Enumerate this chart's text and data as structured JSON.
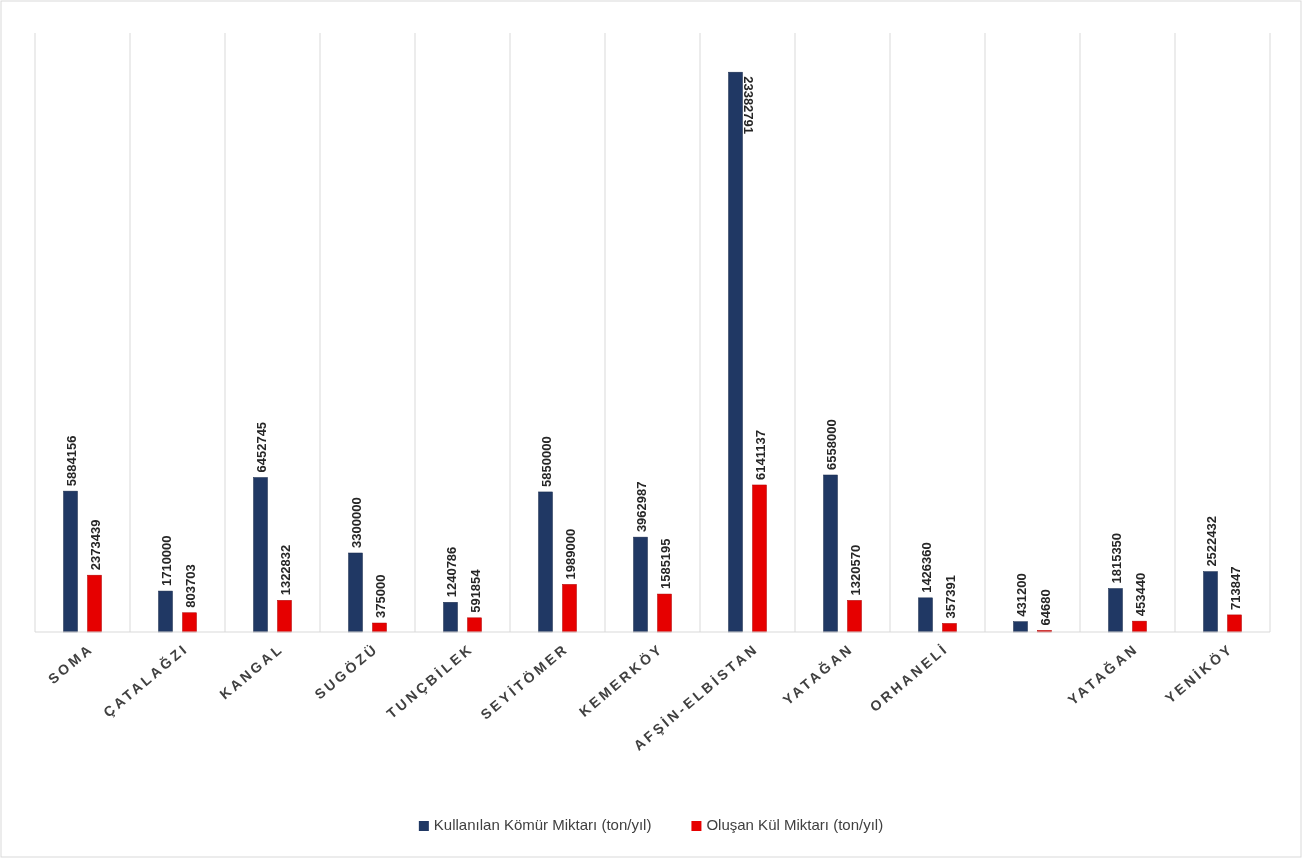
{
  "chart_data": {
    "type": "bar",
    "categories": [
      "SOMA",
      "ÇATALAĞZI",
      "KANGAL",
      "SUGÖZÜ",
      "TUNÇBİLEK",
      "SEYİTÖMER",
      "KEMERKÖY",
      "AFŞİN-ELBİSTAN",
      "YATAĞAN",
      "ORHANELİ",
      null,
      "YATAĞAN",
      "YENİKÖY"
    ],
    "series": [
      {
        "name": "Kullanılan Kömür Miktarı (ton/yıl)",
        "color": "#203864",
        "values": [
          5884156,
          1710000,
          6452745,
          3300000,
          1240786,
          5850000,
          3962987,
          23382791,
          6558000,
          1426360,
          431200,
          1815350,
          2522432
        ]
      },
      {
        "name": "Oluşan Kül Miktarı (ton/yıl)",
        "color": "#e60000",
        "values": [
          2373439,
          803703,
          1322832,
          375000,
          591854,
          1989000,
          1585195,
          6141137,
          1320570,
          357391,
          64680,
          453440,
          713847
        ]
      }
    ],
    "data_labels": true,
    "grid": "x",
    "legend": "bottom"
  }
}
